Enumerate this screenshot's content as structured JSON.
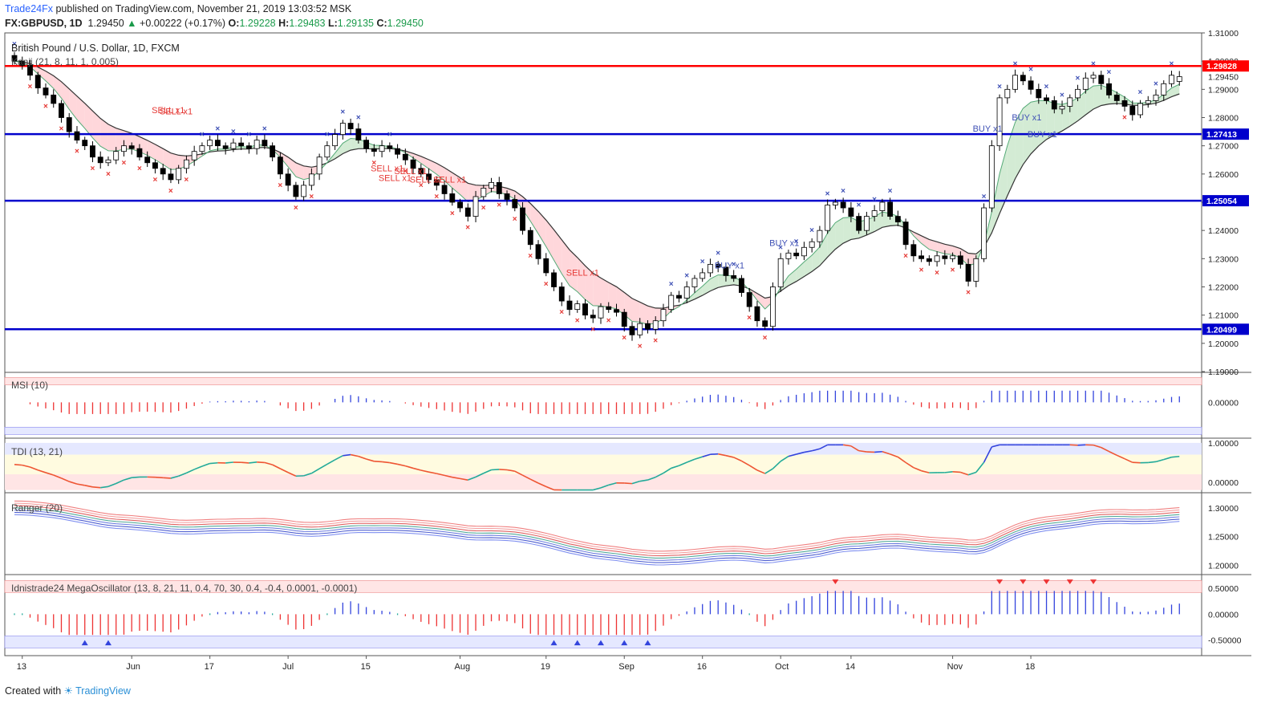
{
  "header": {
    "publisher": "Trade24Fx",
    "published_text": "published on TradingView.com, November 21, 2019 13:03:52 MSK",
    "symbol": "FX:GBPUSD, 1D",
    "last": "1.29450",
    "change_arrow": "▲",
    "change": "+0.00222 (+0.17%)",
    "o_label": "O:",
    "o": "1.29228",
    "h_label": "H:",
    "h": "1.29483",
    "l_label": "L:",
    "l": "1.29135",
    "c_label": "C:",
    "c": "1.29450"
  },
  "footer": {
    "created_with": "Created with",
    "brand": "TradingView"
  },
  "colors": {
    "up_candle": "#ffffff",
    "down_candle": "#000000",
    "resistance": "#ff0000",
    "support": "#0000cc",
    "sell": "#e53935",
    "buy": "#3f51b5",
    "kumo_bull": "#c8e6c9",
    "kumo_bear": "#ffcdd2"
  },
  "chart_data": [
    {
      "type": "candlestick",
      "title": "British Pound / U.S. Dollar, 1D, FXCM",
      "indicator_label": "Kanji (21, 8, 11, 1, 0.005)",
      "ylim": [
        1.19,
        1.31
      ],
      "y_ticks": [
        "1.31000",
        "1.30000",
        "1.29000",
        "1.28000",
        "1.27000",
        "1.26000",
        "1.25000",
        "1.24000",
        "1.23000",
        "1.22000",
        "1.21000",
        "1.20000",
        "1.19000"
      ],
      "x_ticks": [
        {
          "label": "13",
          "i": 1
        },
        {
          "label": "Jun",
          "i": 15
        },
        {
          "label": "17",
          "i": 25
        },
        {
          "label": "Jul",
          "i": 35
        },
        {
          "label": "15",
          "i": 45
        },
        {
          "label": "Aug",
          "i": 57
        },
        {
          "label": "19",
          "i": 68
        },
        {
          "label": "Sep",
          "i": 78
        },
        {
          "label": "16",
          "i": 88
        },
        {
          "label": "Oct",
          "i": 98
        },
        {
          "label": "14",
          "i": 107
        },
        {
          "label": "Nov",
          "i": 120
        },
        {
          "label": "18",
          "i": 130
        }
      ],
      "horizontal_levels": [
        {
          "label": "1.29828",
          "value": 1.29828,
          "color": "#ff0000"
        },
        {
          "label": "1.27413",
          "value": 1.27413,
          "color": "#0000cc"
        },
        {
          "label": "1.25054",
          "value": 1.25054,
          "color": "#0000cc"
        },
        {
          "label": "1.20499",
          "value": 1.20499,
          "color": "#0000cc"
        }
      ],
      "last_price_label": "1.29450",
      "last_price": 1.2945,
      "close": [
        1.3,
        1.2985,
        1.295,
        1.2905,
        1.288,
        1.285,
        1.28,
        1.275,
        1.272,
        1.27,
        1.266,
        1.264,
        1.265,
        1.268,
        1.27,
        1.269,
        1.266,
        1.264,
        1.262,
        1.26,
        1.258,
        1.262,
        1.265,
        1.268,
        1.27,
        1.272,
        1.27,
        1.269,
        1.271,
        1.27,
        1.269,
        1.272,
        1.27,
        1.266,
        1.26,
        1.256,
        1.252,
        1.256,
        1.26,
        1.266,
        1.27,
        1.274,
        1.278,
        1.276,
        1.272,
        1.269,
        1.268,
        1.27,
        1.269,
        1.267,
        1.265,
        1.262,
        1.26,
        1.258,
        1.256,
        1.253,
        1.25,
        1.248,
        1.245,
        1.252,
        1.255,
        1.257,
        1.253,
        1.251,
        1.248,
        1.24,
        1.235,
        1.23,
        1.225,
        1.22,
        1.215,
        1.212,
        1.214,
        1.21,
        1.209,
        1.213,
        1.212,
        1.211,
        1.206,
        1.203,
        1.207,
        1.205,
        1.208,
        1.212,
        1.217,
        1.216,
        1.22,
        1.223,
        1.225,
        1.228,
        1.227,
        1.224,
        1.223,
        1.218,
        1.213,
        1.208,
        1.206,
        1.22,
        1.23,
        1.232,
        1.231,
        1.234,
        1.236,
        1.24,
        1.249,
        1.25,
        1.248,
        1.245,
        1.24,
        1.245,
        1.247,
        1.25,
        1.245,
        1.243,
        1.235,
        1.231,
        1.23,
        1.229,
        1.231,
        1.23,
        1.231,
        1.228,
        1.222,
        1.23,
        1.248,
        1.27,
        1.287,
        1.29,
        1.295,
        1.293,
        1.29,
        1.287,
        1.286,
        1.283,
        1.284,
        1.287,
        1.29,
        1.294,
        1.295,
        1.292,
        1.288,
        1.286,
        1.284,
        1.281,
        1.285,
        1.286,
        1.288,
        1.292,
        1.295,
        1.2945
      ],
      "open": [
        1.302,
        1.3,
        1.2985,
        1.295,
        1.2905,
        1.288,
        1.285,
        1.28,
        1.275,
        1.272,
        1.27,
        1.266,
        1.264,
        1.265,
        1.268,
        1.27,
        1.269,
        1.266,
        1.264,
        1.262,
        1.26,
        1.258,
        1.262,
        1.265,
        1.268,
        1.27,
        1.272,
        1.27,
        1.269,
        1.271,
        1.27,
        1.269,
        1.272,
        1.27,
        1.266,
        1.26,
        1.256,
        1.252,
        1.256,
        1.26,
        1.266,
        1.27,
        1.274,
        1.278,
        1.276,
        1.272,
        1.269,
        1.268,
        1.27,
        1.269,
        1.267,
        1.265,
        1.262,
        1.26,
        1.258,
        1.256,
        1.253,
        1.25,
        1.248,
        1.245,
        1.252,
        1.255,
        1.257,
        1.253,
        1.251,
        1.248,
        1.24,
        1.235,
        1.23,
        1.225,
        1.22,
        1.215,
        1.212,
        1.214,
        1.21,
        1.209,
        1.213,
        1.212,
        1.211,
        1.206,
        1.203,
        1.207,
        1.205,
        1.208,
        1.212,
        1.217,
        1.216,
        1.22,
        1.223,
        1.225,
        1.228,
        1.227,
        1.224,
        1.223,
        1.218,
        1.213,
        1.208,
        1.206,
        1.22,
        1.23,
        1.232,
        1.231,
        1.234,
        1.236,
        1.24,
        1.249,
        1.25,
        1.248,
        1.245,
        1.24,
        1.245,
        1.247,
        1.25,
        1.245,
        1.243,
        1.235,
        1.231,
        1.23,
        1.229,
        1.231,
        1.23,
        1.231,
        1.228,
        1.222,
        1.23,
        1.248,
        1.27,
        1.287,
        1.29,
        1.295,
        1.293,
        1.29,
        1.287,
        1.286,
        1.283,
        1.284,
        1.287,
        1.29,
        1.294,
        1.295,
        1.292,
        1.288,
        1.286,
        1.284,
        1.281,
        1.285,
        1.286,
        1.288,
        1.292,
        1.2928
      ],
      "annotations": [
        {
          "text": "SELL x1",
          "i": 19,
          "y": 1.2815,
          "kind": "sell"
        },
        {
          "text": "SELL x1",
          "i": 20,
          "y": 1.2812,
          "kind": "sell"
        },
        {
          "text": "SELL x1",
          "i": 47,
          "y": 1.261,
          "kind": "sell"
        },
        {
          "text": "SELL x1",
          "i": 50,
          "y": 1.26,
          "kind": "sell"
        },
        {
          "text": "SELL x1",
          "i": 48,
          "y": 1.2575,
          "kind": "sell"
        },
        {
          "text": "SELL x1",
          "i": 52,
          "y": 1.257,
          "kind": "sell"
        },
        {
          "text": "SELL x1",
          "i": 55,
          "y": 1.257,
          "kind": "sell"
        },
        {
          "text": "SELL x1",
          "i": 72,
          "y": 1.224,
          "kind": "sell"
        },
        {
          "text": "BUY x1",
          "i": 91,
          "y": 1.2265,
          "kind": "buy"
        },
        {
          "text": "BUY x1",
          "i": 98,
          "y": 1.2345,
          "kind": "buy"
        },
        {
          "text": "BUY x1",
          "i": 124,
          "y": 1.275,
          "kind": "buy"
        },
        {
          "text": "BUY x1",
          "i": 129,
          "y": 1.279,
          "kind": "buy"
        },
        {
          "text": "BUY x1",
          "i": 131,
          "y": 1.273,
          "kind": "buy"
        }
      ]
    },
    {
      "type": "bar",
      "label": "MSI (10)",
      "ylim": [
        -0.12,
        0.1
      ],
      "y_ticks": [
        "0.00000"
      ],
      "values_note": "histogram series, positive blue, negative red"
    },
    {
      "type": "line",
      "label": "TDI (13, 21)",
      "ylim": [
        -0.25,
        1.1
      ],
      "y_ticks": [
        "1.00000",
        "0.00000"
      ]
    },
    {
      "type": "line",
      "label": "Ranger (20)",
      "ylim": [
        1.185,
        1.325
      ],
      "y_ticks": [
        "1.30000",
        "1.25000",
        "1.20000"
      ]
    },
    {
      "type": "bar",
      "label": "Idnistrade24 MegaOscillator (13, 8, 21, 11, 0.4, 70, 30, 0.4, -0.4, 0.0001, -0.0001)",
      "ylim": [
        -0.8,
        0.75
      ],
      "y_ticks": [
        "0.50000",
        "0.00000",
        "-0.50000"
      ]
    }
  ]
}
